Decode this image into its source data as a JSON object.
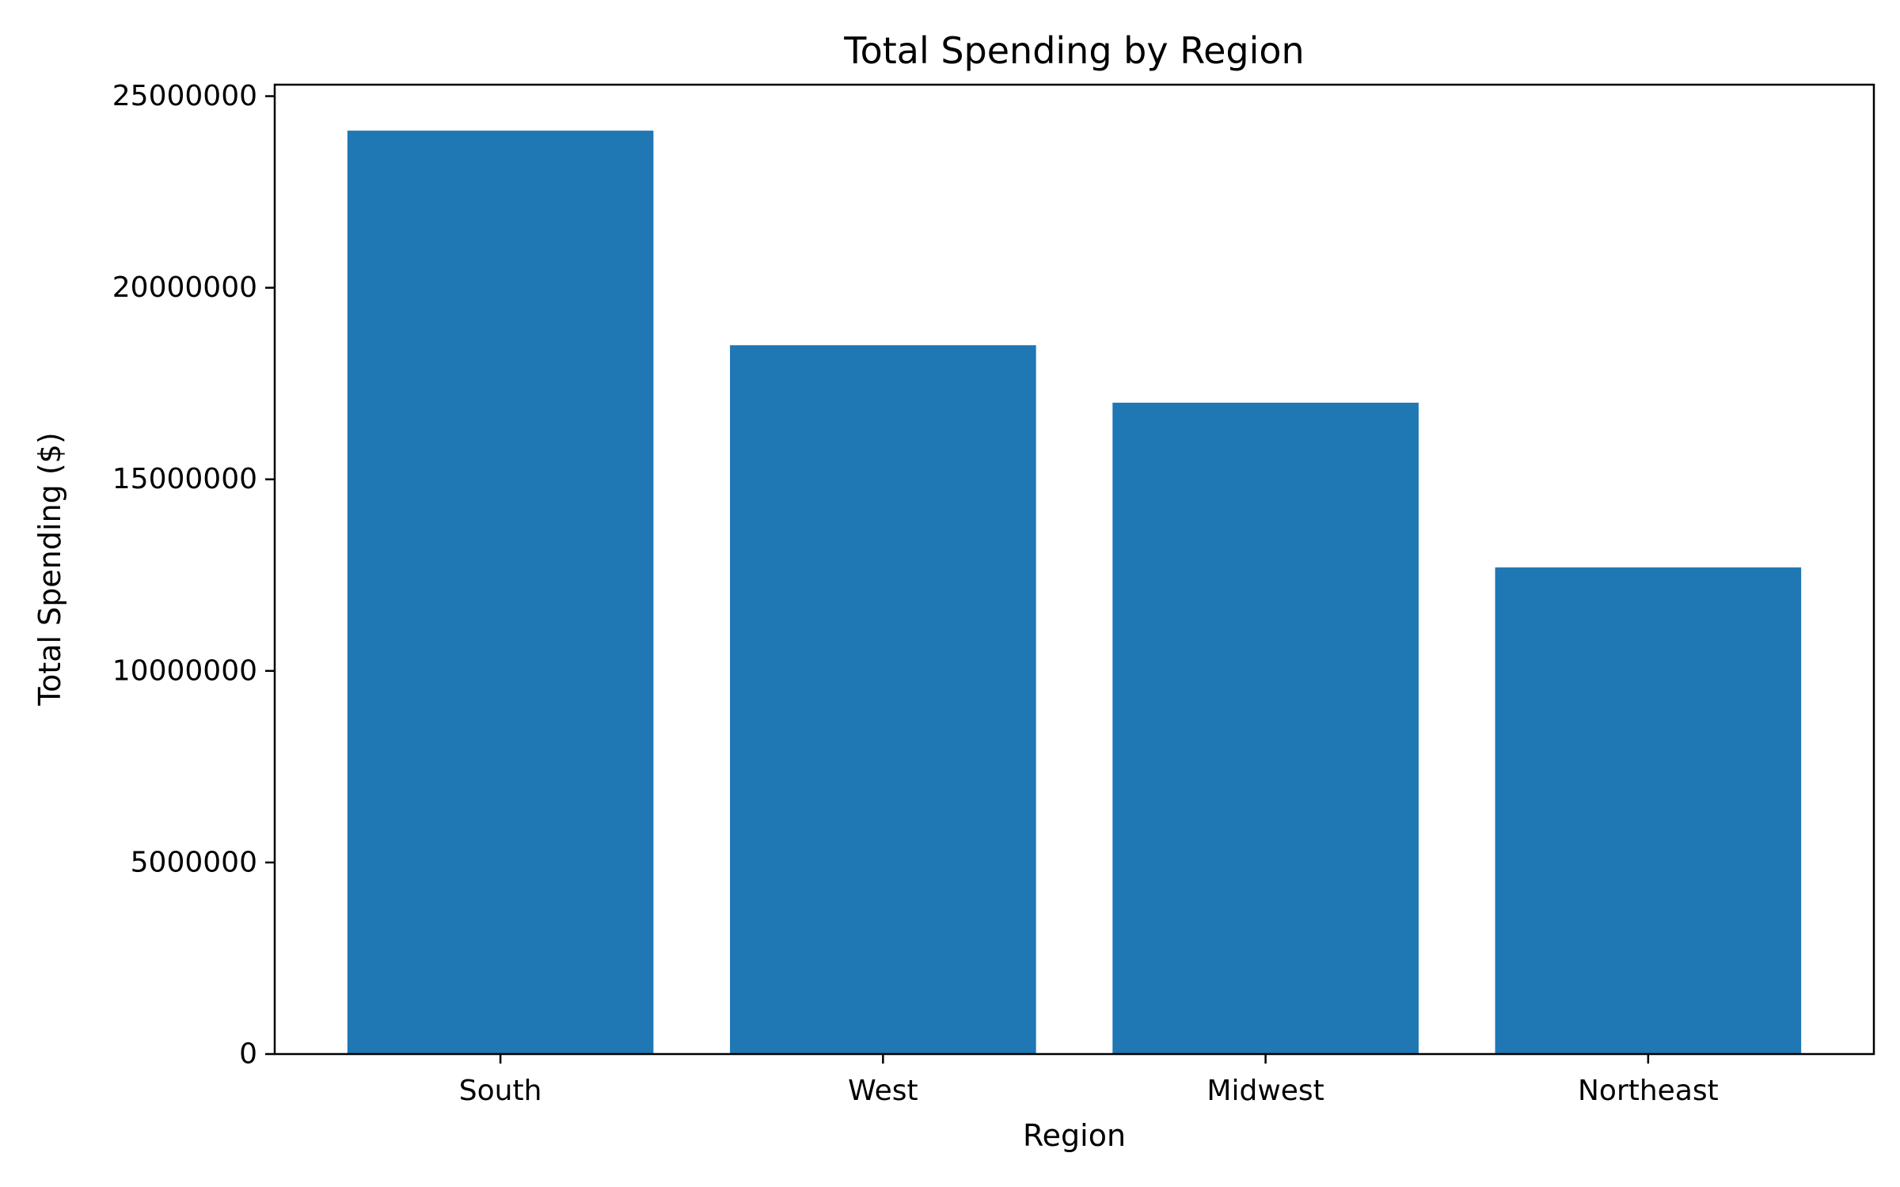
{
  "chart_data": {
    "type": "bar",
    "title": "Total Spending by Region",
    "xlabel": "Region",
    "ylabel": "Total Spending ($)",
    "categories": [
      "South",
      "West",
      "Midwest",
      "Northeast"
    ],
    "values": [
      24100000,
      18500000,
      17000000,
      12700000
    ],
    "ylim": [
      0,
      25300000
    ],
    "yticks": [
      0,
      5000000,
      10000000,
      15000000,
      20000000,
      25000000
    ],
    "ytick_labels": [
      "0",
      "5000000",
      "10000000",
      "15000000",
      "20000000",
      "25000000"
    ],
    "grid": false,
    "legend": "none",
    "bar_color": "#1f77b4"
  }
}
